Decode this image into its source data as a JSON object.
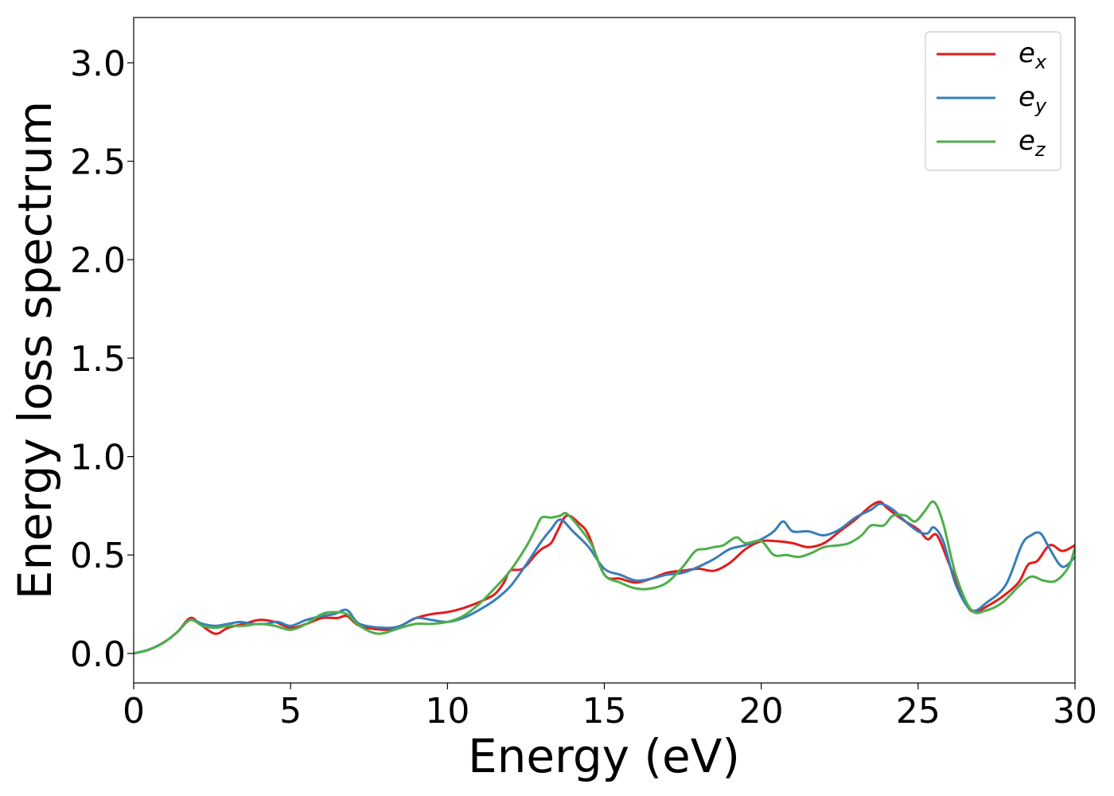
{
  "chart_data": {
    "type": "line",
    "xlabel": "Energy (eV)",
    "ylabel": "Energy loss spectrum",
    "xlim": [
      0,
      30
    ],
    "ylim": [
      -0.15,
      3.23
    ],
    "xticks": [
      0,
      5,
      10,
      15,
      20,
      25,
      30
    ],
    "xtick_labels": [
      "0",
      "5",
      "10",
      "15",
      "20",
      "25",
      "30"
    ],
    "yticks": [
      0.0,
      0.5,
      1.0,
      1.5,
      2.0,
      2.5,
      3.0
    ],
    "ytick_labels": [
      "0.0",
      "0.5",
      "1.0",
      "1.5",
      "2.0",
      "2.5",
      "3.0"
    ],
    "grid": false,
    "legend_position": "top-right",
    "series": [
      {
        "name": "e_x",
        "label_main": "e",
        "label_sub": "x",
        "color": "#e41a1c",
        "x": [
          0,
          0.5,
          1.0,
          1.4,
          1.8,
          2.1,
          2.6,
          3.0,
          3.5,
          4.0,
          4.5,
          5.0,
          5.5,
          6.0,
          6.5,
          6.8,
          7.2,
          8.0,
          8.5,
          9.0,
          9.5,
          10.0,
          10.5,
          11.0,
          11.5,
          11.8,
          12.0,
          12.4,
          12.8,
          13.0,
          13.3,
          13.5,
          13.8,
          14.2,
          14.5,
          15.0,
          15.5,
          16.0,
          16.5,
          17.0,
          17.5,
          18.0,
          18.5,
          19.0,
          19.5,
          20.0,
          20.5,
          21.0,
          21.5,
          22.0,
          22.5,
          23.0,
          23.5,
          23.8,
          24.0,
          24.5,
          25.0,
          25.3,
          25.6,
          26.0,
          26.5,
          26.8,
          27.2,
          27.7,
          28.2,
          28.5,
          28.8,
          29.2,
          29.6,
          30.0
        ],
        "values": [
          0.0,
          0.02,
          0.06,
          0.11,
          0.18,
          0.15,
          0.1,
          0.13,
          0.15,
          0.17,
          0.16,
          0.13,
          0.15,
          0.18,
          0.18,
          0.19,
          0.14,
          0.12,
          0.14,
          0.18,
          0.2,
          0.21,
          0.23,
          0.26,
          0.3,
          0.36,
          0.42,
          0.43,
          0.5,
          0.53,
          0.56,
          0.62,
          0.7,
          0.66,
          0.6,
          0.4,
          0.38,
          0.36,
          0.38,
          0.41,
          0.42,
          0.43,
          0.42,
          0.46,
          0.53,
          0.57,
          0.57,
          0.56,
          0.54,
          0.56,
          0.62,
          0.68,
          0.75,
          0.77,
          0.74,
          0.68,
          0.63,
          0.58,
          0.6,
          0.45,
          0.26,
          0.21,
          0.24,
          0.29,
          0.36,
          0.45,
          0.47,
          0.55,
          0.52,
          0.55
        ]
      },
      {
        "name": "e_y",
        "label_main": "e",
        "label_sub": "y",
        "color": "#377eb8",
        "x": [
          0,
          0.5,
          1.0,
          1.4,
          1.8,
          2.2,
          2.6,
          3.0,
          3.4,
          3.8,
          4.2,
          4.6,
          5.0,
          5.5,
          6.0,
          6.4,
          6.8,
          7.2,
          8.0,
          8.5,
          9.0,
          9.5,
          10.0,
          10.5,
          11.0,
          11.5,
          12.0,
          12.5,
          13.0,
          13.3,
          13.6,
          14.0,
          14.5,
          15.0,
          15.5,
          16.0,
          16.5,
          17.0,
          17.5,
          18.0,
          18.5,
          19.0,
          19.5,
          20.0,
          20.4,
          20.7,
          21.0,
          21.5,
          22.0,
          22.5,
          23.0,
          23.5,
          23.8,
          24.2,
          24.6,
          25.0,
          25.3,
          25.5,
          25.8,
          26.2,
          26.7,
          27.2,
          27.8,
          28.3,
          28.6,
          28.9,
          29.2,
          29.6,
          30.0
        ],
        "values": [
          0.0,
          0.02,
          0.06,
          0.11,
          0.17,
          0.15,
          0.14,
          0.15,
          0.16,
          0.15,
          0.15,
          0.16,
          0.14,
          0.17,
          0.19,
          0.2,
          0.22,
          0.15,
          0.13,
          0.14,
          0.18,
          0.17,
          0.16,
          0.18,
          0.22,
          0.27,
          0.34,
          0.45,
          0.57,
          0.63,
          0.68,
          0.62,
          0.54,
          0.43,
          0.4,
          0.37,
          0.38,
          0.4,
          0.41,
          0.44,
          0.48,
          0.53,
          0.55,
          0.58,
          0.62,
          0.67,
          0.62,
          0.62,
          0.6,
          0.63,
          0.69,
          0.73,
          0.76,
          0.73,
          0.67,
          0.62,
          0.61,
          0.64,
          0.57,
          0.35,
          0.22,
          0.26,
          0.35,
          0.55,
          0.6,
          0.61,
          0.53,
          0.44,
          0.49
        ]
      },
      {
        "name": "e_z",
        "label_main": "e",
        "label_sub": "z",
        "color": "#4daf4a",
        "x": [
          0,
          0.5,
          1.0,
          1.4,
          1.8,
          2.2,
          2.6,
          3.0,
          3.5,
          4.0,
          4.5,
          5.0,
          5.5,
          6.0,
          6.4,
          6.8,
          7.2,
          7.8,
          8.5,
          9.0,
          9.5,
          10.0,
          10.5,
          11.0,
          11.5,
          12.0,
          12.5,
          12.8,
          13.0,
          13.3,
          13.6,
          13.8,
          14.2,
          14.6,
          15.0,
          15.5,
          16.0,
          16.5,
          17.0,
          17.5,
          17.9,
          18.2,
          18.5,
          18.8,
          19.2,
          19.5,
          20.0,
          20.4,
          20.8,
          21.2,
          21.6,
          22.0,
          22.5,
          22.8,
          23.2,
          23.5,
          23.9,
          24.2,
          24.6,
          24.9,
          25.2,
          25.5,
          25.8,
          26.2,
          26.7,
          27.2,
          27.7,
          28.2,
          28.6,
          29.0,
          29.4,
          29.8,
          30.0
        ],
        "values": [
          0.0,
          0.02,
          0.06,
          0.11,
          0.17,
          0.14,
          0.13,
          0.14,
          0.14,
          0.15,
          0.14,
          0.12,
          0.15,
          0.2,
          0.21,
          0.2,
          0.14,
          0.1,
          0.13,
          0.15,
          0.15,
          0.16,
          0.19,
          0.25,
          0.33,
          0.42,
          0.54,
          0.63,
          0.69,
          0.69,
          0.7,
          0.71,
          0.64,
          0.55,
          0.4,
          0.36,
          0.33,
          0.33,
          0.36,
          0.44,
          0.52,
          0.53,
          0.54,
          0.55,
          0.59,
          0.56,
          0.57,
          0.5,
          0.5,
          0.49,
          0.51,
          0.54,
          0.55,
          0.56,
          0.6,
          0.65,
          0.65,
          0.7,
          0.7,
          0.67,
          0.72,
          0.77,
          0.66,
          0.4,
          0.22,
          0.22,
          0.26,
          0.34,
          0.39,
          0.37,
          0.37,
          0.44,
          0.54
        ]
      }
    ]
  }
}
